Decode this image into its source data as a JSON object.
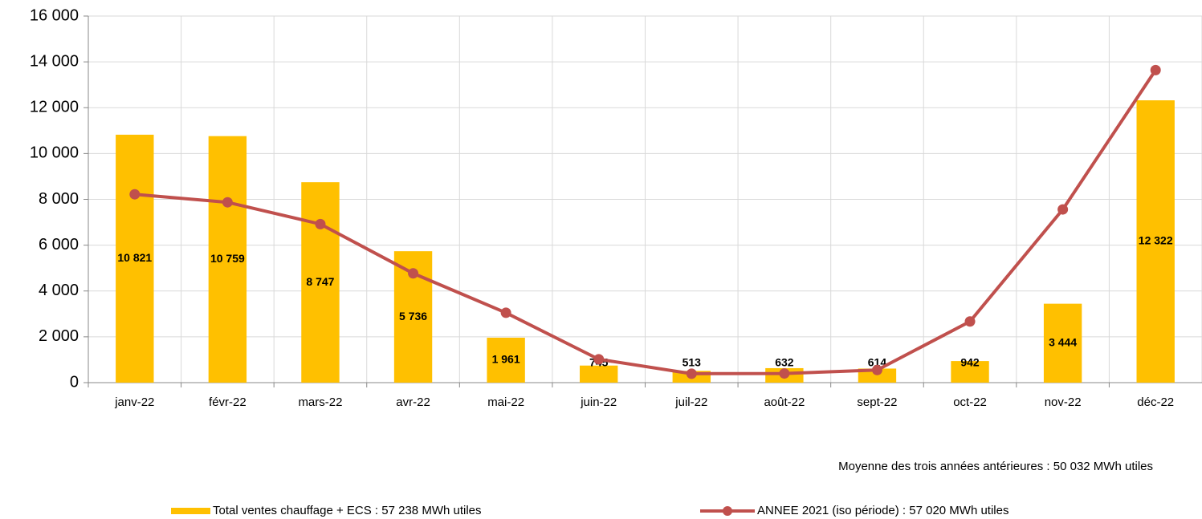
{
  "chart_data": {
    "type": "bar_line",
    "categories": [
      "janv-22",
      "févr-22",
      "mars-22",
      "avr-22",
      "mai-22",
      "juin-22",
      "juil-22",
      "août-22",
      "sept-22",
      "oct-22",
      "nov-22",
      "déc-22"
    ],
    "series": [
      {
        "name": "Total ventes chauffage + ECS : 57 238 MWh utiles",
        "type": "bar",
        "color": "#FFC000",
        "values": [
          10821,
          10759,
          8747,
          5736,
          1961,
          745,
          513,
          632,
          614,
          942,
          3444,
          12322
        ],
        "value_labels": [
          "10 821",
          "10 759",
          "8 747",
          "5 736",
          "1 961",
          "745",
          "513",
          "632",
          "614",
          "942",
          "3 444",
          "12 322"
        ]
      },
      {
        "name": "ANNEE 2021 (iso période) : 57 020 MWh utiles",
        "type": "line",
        "color": "#C0504D",
        "values": [
          8220,
          7870,
          6920,
          4770,
          3050,
          1020,
          390,
          400,
          550,
          2670,
          7560,
          13640
        ]
      }
    ],
    "annotation": "Moyenne des trois années antérieures : 50 032 MWh utiles",
    "ylim": [
      0,
      16000
    ],
    "yticks": [
      0,
      {
        "value": 2000,
        "label": "2 000"
      },
      {
        "value": 4000,
        "label": "4 000"
      },
      {
        "value": 6000,
        "label": "6 000"
      },
      {
        "value": 8000,
        "label": "8 000"
      },
      {
        "value": 10000,
        "label": "10 000"
      },
      {
        "value": 12000,
        "label": "12 000"
      },
      {
        "value": 14000,
        "label": "14 000"
      },
      {
        "value": 16000,
        "label": "16 000"
      }
    ],
    "grid": true
  }
}
